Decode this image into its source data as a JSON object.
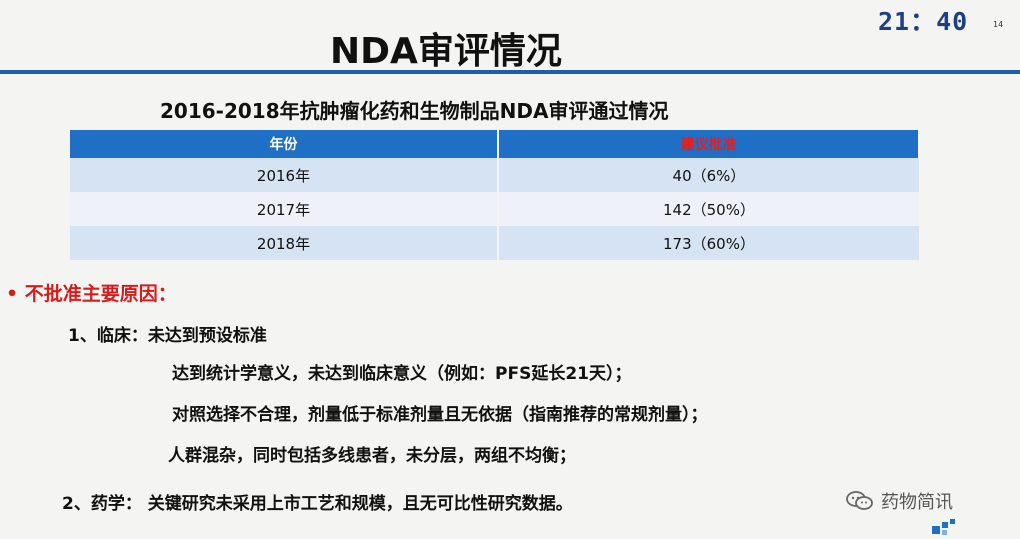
{
  "header": {
    "clock": "21：40",
    "page_number": "14",
    "title": "NDA审评情况"
  },
  "table": {
    "title": "2016-2018年抗肿瘤化药和生物制品NDA审评通过情况",
    "columns": [
      "年份",
      "建议批准"
    ],
    "rows": [
      {
        "year": "2016年",
        "approved": "40（6%）"
      },
      {
        "year": "2017年",
        "approved": "142（50%）"
      },
      {
        "year": "2018年",
        "approved": "173（60%）"
      }
    ]
  },
  "reasons": {
    "bullet": "•",
    "title": "不批准主要原因：",
    "clinical_heading": "1、临床：未达到预设标准",
    "clinical_points": [
      "达到统计学意义，未达到临床意义（例如：PFS延长21天）；",
      "对照选择不合理，剂量低于标准剂量且无依据（指南推荐的常规剂量）；",
      "人群混杂，同时包括多线患者，未分层，两组不均衡；"
    ],
    "pharmacy": "2、药学： 关键研究未采用上市工艺和规模，且无可比性研究数据。"
  },
  "watermark": {
    "text": "药物简讯",
    "icon": "wechat-icon"
  },
  "colors": {
    "accent": "#1f6fc6",
    "alert": "#d41e1e"
  }
}
